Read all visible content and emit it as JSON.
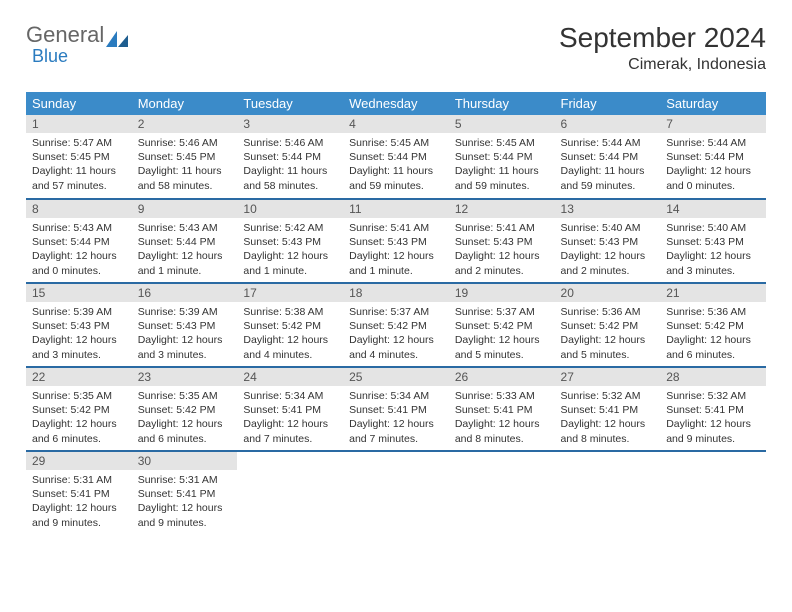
{
  "brand": {
    "part1": "General",
    "part2": "Blue"
  },
  "title": "September 2024",
  "location": "Cimerak, Indonesia",
  "colors": {
    "header_bg": "#3b8bc9",
    "row_border": "#2a6aa3",
    "daynum_bg": "#e4e4e4",
    "logo_blue": "#2a7bbf"
  },
  "weekdays": [
    "Sunday",
    "Monday",
    "Tuesday",
    "Wednesday",
    "Thursday",
    "Friday",
    "Saturday"
  ],
  "days": [
    {
      "n": "1",
      "sr": "5:47 AM",
      "ss": "5:45 PM",
      "dl": "11 hours and 57 minutes."
    },
    {
      "n": "2",
      "sr": "5:46 AM",
      "ss": "5:45 PM",
      "dl": "11 hours and 58 minutes."
    },
    {
      "n": "3",
      "sr": "5:46 AM",
      "ss": "5:44 PM",
      "dl": "11 hours and 58 minutes."
    },
    {
      "n": "4",
      "sr": "5:45 AM",
      "ss": "5:44 PM",
      "dl": "11 hours and 59 minutes."
    },
    {
      "n": "5",
      "sr": "5:45 AM",
      "ss": "5:44 PM",
      "dl": "11 hours and 59 minutes."
    },
    {
      "n": "6",
      "sr": "5:44 AM",
      "ss": "5:44 PM",
      "dl": "11 hours and 59 minutes."
    },
    {
      "n": "7",
      "sr": "5:44 AM",
      "ss": "5:44 PM",
      "dl": "12 hours and 0 minutes."
    },
    {
      "n": "8",
      "sr": "5:43 AM",
      "ss": "5:44 PM",
      "dl": "12 hours and 0 minutes."
    },
    {
      "n": "9",
      "sr": "5:43 AM",
      "ss": "5:44 PM",
      "dl": "12 hours and 1 minute."
    },
    {
      "n": "10",
      "sr": "5:42 AM",
      "ss": "5:43 PM",
      "dl": "12 hours and 1 minute."
    },
    {
      "n": "11",
      "sr": "5:41 AM",
      "ss": "5:43 PM",
      "dl": "12 hours and 1 minute."
    },
    {
      "n": "12",
      "sr": "5:41 AM",
      "ss": "5:43 PM",
      "dl": "12 hours and 2 minutes."
    },
    {
      "n": "13",
      "sr": "5:40 AM",
      "ss": "5:43 PM",
      "dl": "12 hours and 2 minutes."
    },
    {
      "n": "14",
      "sr": "5:40 AM",
      "ss": "5:43 PM",
      "dl": "12 hours and 3 minutes."
    },
    {
      "n": "15",
      "sr": "5:39 AM",
      "ss": "5:43 PM",
      "dl": "12 hours and 3 minutes."
    },
    {
      "n": "16",
      "sr": "5:39 AM",
      "ss": "5:43 PM",
      "dl": "12 hours and 3 minutes."
    },
    {
      "n": "17",
      "sr": "5:38 AM",
      "ss": "5:42 PM",
      "dl": "12 hours and 4 minutes."
    },
    {
      "n": "18",
      "sr": "5:37 AM",
      "ss": "5:42 PM",
      "dl": "12 hours and 4 minutes."
    },
    {
      "n": "19",
      "sr": "5:37 AM",
      "ss": "5:42 PM",
      "dl": "12 hours and 5 minutes."
    },
    {
      "n": "20",
      "sr": "5:36 AM",
      "ss": "5:42 PM",
      "dl": "12 hours and 5 minutes."
    },
    {
      "n": "21",
      "sr": "5:36 AM",
      "ss": "5:42 PM",
      "dl": "12 hours and 6 minutes."
    },
    {
      "n": "22",
      "sr": "5:35 AM",
      "ss": "5:42 PM",
      "dl": "12 hours and 6 minutes."
    },
    {
      "n": "23",
      "sr": "5:35 AM",
      "ss": "5:42 PM",
      "dl": "12 hours and 6 minutes."
    },
    {
      "n": "24",
      "sr": "5:34 AM",
      "ss": "5:41 PM",
      "dl": "12 hours and 7 minutes."
    },
    {
      "n": "25",
      "sr": "5:34 AM",
      "ss": "5:41 PM",
      "dl": "12 hours and 7 minutes."
    },
    {
      "n": "26",
      "sr": "5:33 AM",
      "ss": "5:41 PM",
      "dl": "12 hours and 8 minutes."
    },
    {
      "n": "27",
      "sr": "5:32 AM",
      "ss": "5:41 PM",
      "dl": "12 hours and 8 minutes."
    },
    {
      "n": "28",
      "sr": "5:32 AM",
      "ss": "5:41 PM",
      "dl": "12 hours and 9 minutes."
    },
    {
      "n": "29",
      "sr": "5:31 AM",
      "ss": "5:41 PM",
      "dl": "12 hours and 9 minutes."
    },
    {
      "n": "30",
      "sr": "5:31 AM",
      "ss": "5:41 PM",
      "dl": "12 hours and 9 minutes."
    }
  ],
  "labels": {
    "sunrise": "Sunrise: ",
    "sunset": "Sunset: ",
    "daylight": "Daylight: "
  }
}
